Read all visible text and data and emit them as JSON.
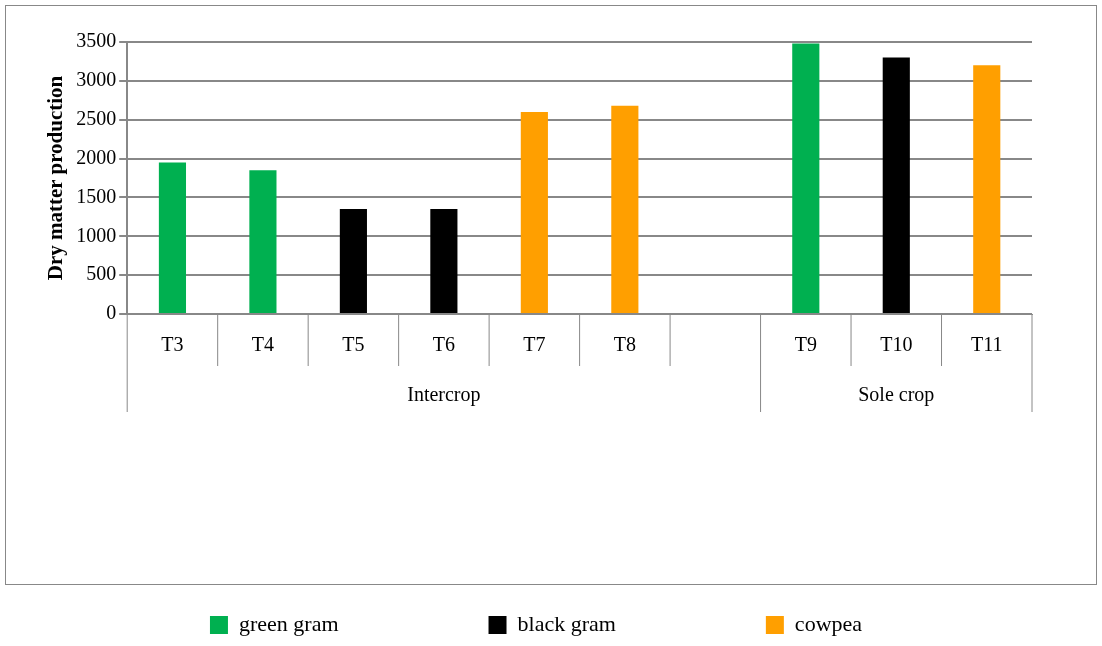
{
  "chart_data": {
    "type": "bar",
    "ylabel": "Dry matter production",
    "categories": [
      "T3",
      "T4",
      "T5",
      "T6",
      "T7",
      "T8",
      null,
      "T9",
      "T10",
      "T11"
    ],
    "series": [
      {
        "name": "green gram",
        "color": "#00b050",
        "values": [
          1950,
          1850,
          null,
          null,
          null,
          null,
          null,
          3480,
          null,
          null
        ]
      },
      {
        "name": "black gram",
        "color": "#000000",
        "values": [
          null,
          null,
          1350,
          1350,
          null,
          null,
          null,
          null,
          3300,
          null
        ]
      },
      {
        "name": "cowpea",
        "color": "#ff9f00",
        "values": [
          null,
          null,
          null,
          null,
          2600,
          2680,
          null,
          null,
          null,
          3200
        ]
      }
    ],
    "ylim": [
      0,
      3500
    ],
    "yticks": [
      0,
      500,
      1000,
      1500,
      2000,
      2500,
      3000,
      3500
    ],
    "grid": "y",
    "legend": "bottom",
    "annotations": [
      "Intercrop",
      "Sole crop"
    ]
  }
}
